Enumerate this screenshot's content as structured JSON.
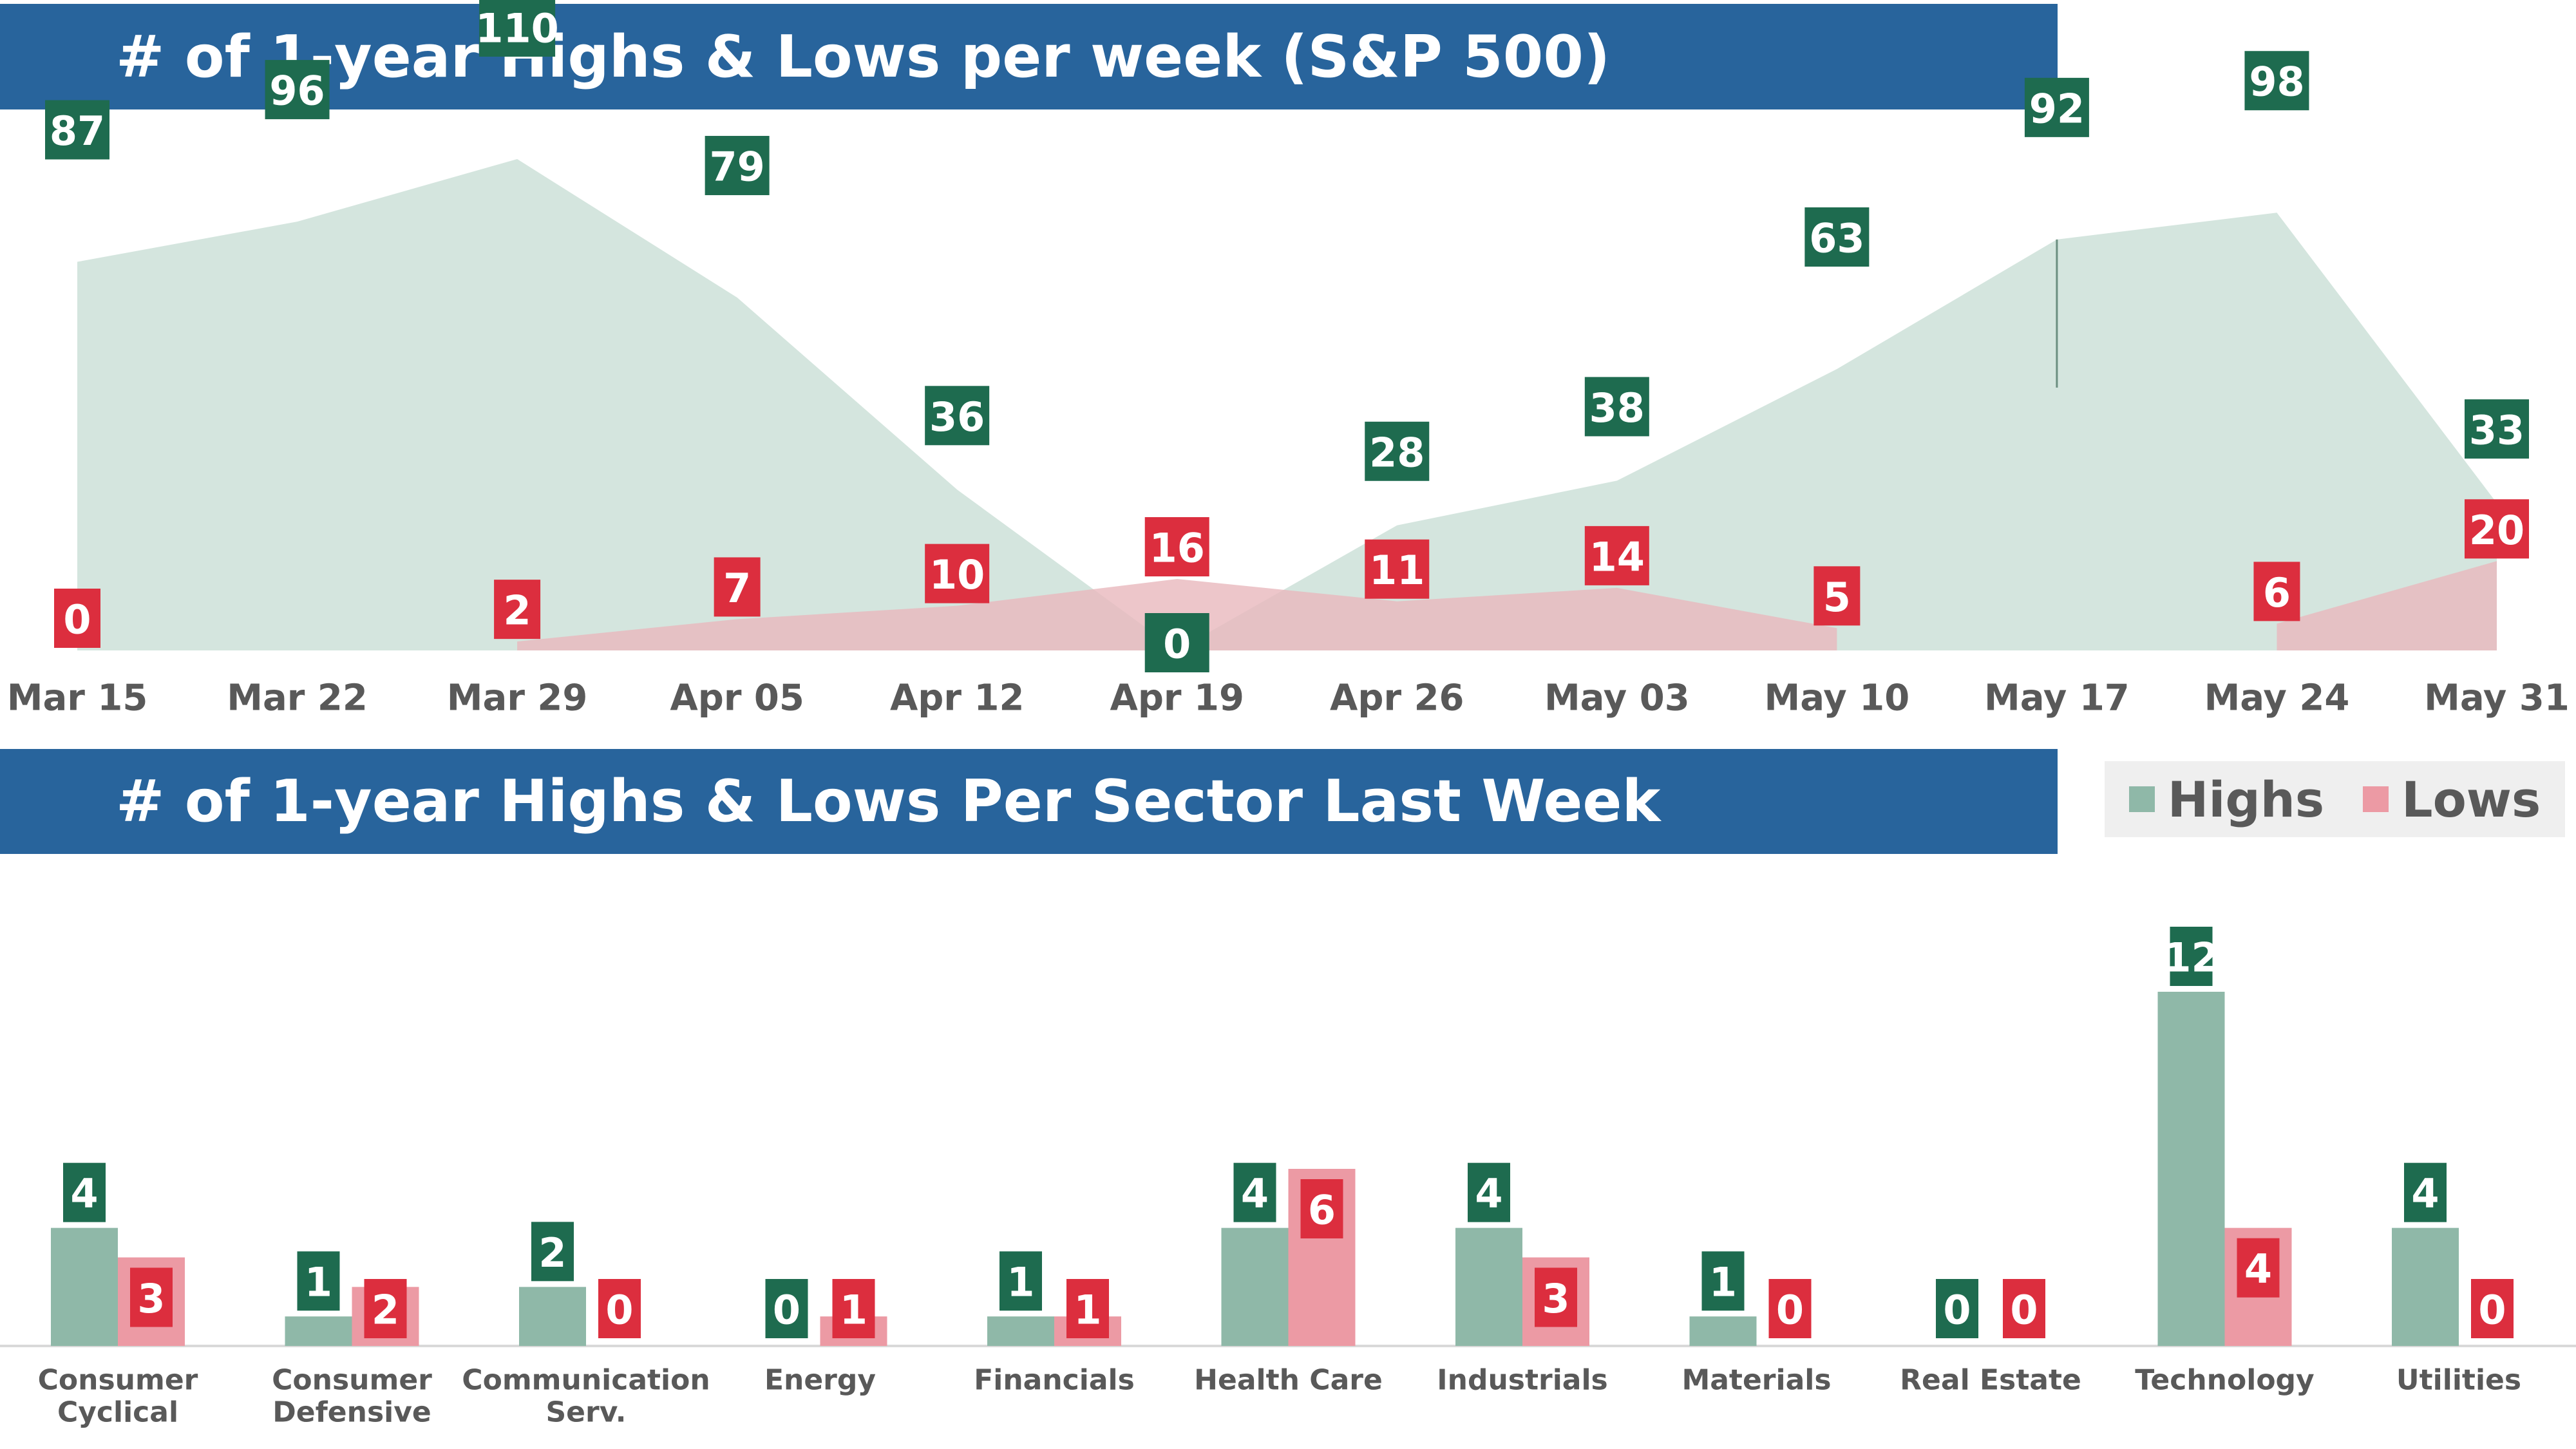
{
  "top_title": "# of 1-year Highs & Lows per week (S&P 500)",
  "bottom_title": "# of 1-year Highs & Lows Per Sector Last Week",
  "legend": {
    "highs": "Highs",
    "lows": "Lows"
  },
  "colors": {
    "banner": "#28649c",
    "highs_area": "#d4e5de",
    "lows_area": "#e9b8bd",
    "highs_bar": "#8fb8a8",
    "lows_bar": "#ec9aa4",
    "highs_label": "#1e6b4f",
    "lows_label": "#dc2e3e"
  },
  "chart_data": [
    {
      "type": "area",
      "title": "# of 1-year Highs & Lows per week (S&P 500)",
      "categories": [
        "Mar 15",
        "Mar 22",
        "Mar 29",
        "Apr 05",
        "Apr 12",
        "Apr 19",
        "Apr 26",
        "May 03",
        "May 10",
        "May 17",
        "May 24",
        "May 31"
      ],
      "series": [
        {
          "name": "Highs",
          "values": [
            87,
            96,
            110,
            79,
            36,
            0,
            28,
            38,
            63,
            92,
            98,
            33
          ]
        },
        {
          "name": "Lows",
          "values": [
            0,
            null,
            2,
            7,
            10,
            16,
            11,
            14,
            5,
            null,
            6,
            20
          ]
        }
      ],
      "ylim": [
        0,
        110
      ]
    },
    {
      "type": "bar",
      "title": "# of 1-year Highs & Lows Per Sector Last Week",
      "categories": [
        [
          "Consumer",
          "Cyclical"
        ],
        [
          "Consumer",
          "Defensive"
        ],
        [
          "Communication",
          "Serv."
        ],
        [
          "Energy"
        ],
        [
          "Financials"
        ],
        [
          "Health Care"
        ],
        [
          "Industrials"
        ],
        [
          "Materials"
        ],
        [
          "Real Estate"
        ],
        [
          "Technology"
        ],
        [
          "Utilities"
        ]
      ],
      "series": [
        {
          "name": "Highs",
          "values": [
            4,
            1,
            2,
            0,
            1,
            4,
            4,
            1,
            0,
            12,
            4
          ]
        },
        {
          "name": "Lows",
          "values": [
            3,
            2,
            0,
            1,
            1,
            6,
            3,
            0,
            0,
            4,
            0
          ]
        }
      ],
      "ylim": [
        0,
        12
      ]
    }
  ]
}
